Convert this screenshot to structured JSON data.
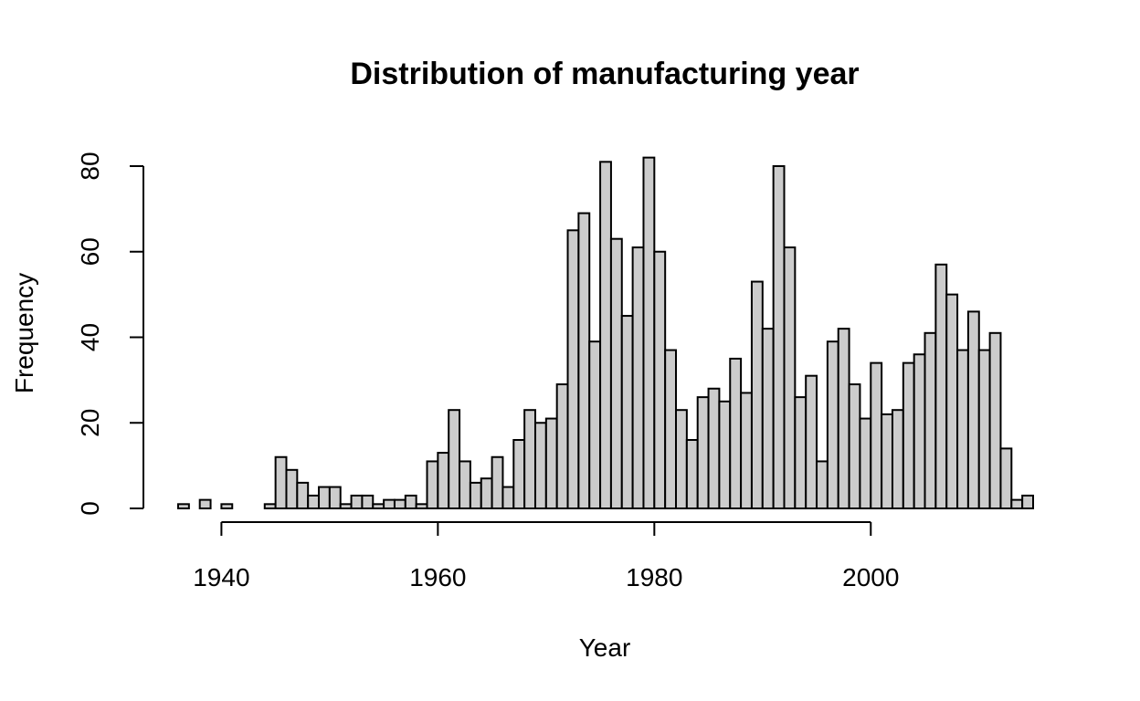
{
  "chart_data": {
    "type": "bar",
    "title": "Distribution of manufacturing year",
    "xlabel": "Year",
    "ylabel": "Frequency",
    "bin_width": 1,
    "x_start": 1936,
    "x_ticks": [
      1940,
      1960,
      1980,
      2000
    ],
    "y_ticks": [
      0,
      20,
      40,
      60,
      80
    ],
    "xlim": [
      1936,
      2015
    ],
    "ylim": [
      0,
      80
    ],
    "grid": false,
    "values": [
      1,
      0,
      2,
      0,
      1,
      0,
      0,
      0,
      1,
      12,
      9,
      6,
      3,
      5,
      5,
      1,
      3,
      3,
      1,
      2,
      2,
      3,
      1,
      11,
      13,
      23,
      11,
      6,
      7,
      12,
      5,
      16,
      23,
      20,
      21,
      29,
      65,
      69,
      39,
      81,
      63,
      45,
      61,
      82,
      60,
      37,
      23,
      16,
      26,
      28,
      25,
      35,
      27,
      53,
      42,
      80,
      61,
      26,
      31,
      11,
      39,
      42,
      29,
      21,
      34,
      22,
      23,
      34,
      36,
      41,
      57,
      50,
      37,
      46,
      37,
      41,
      14,
      2,
      3
    ]
  }
}
